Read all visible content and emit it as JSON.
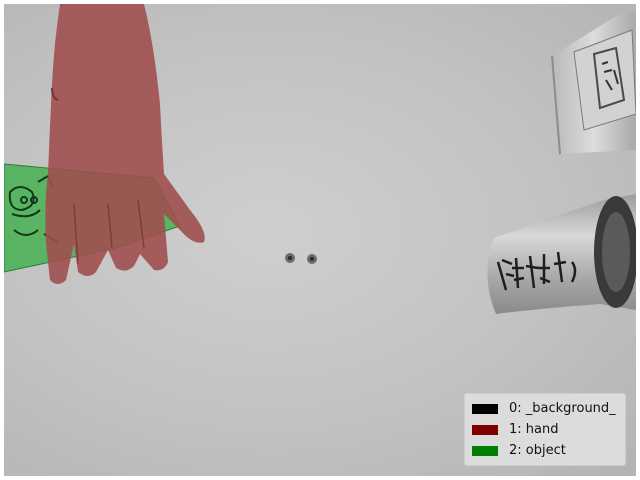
{
  "legend": {
    "items": [
      {
        "label": "0: _background_",
        "color": "#000000"
      },
      {
        "label": "1: hand",
        "color": "#800000"
      },
      {
        "label": "2: object",
        "color": "#008000"
      }
    ]
  },
  "scene": {
    "background_color": "#c4c4c4",
    "hand_overlay_color": "#9a4a4a",
    "object_overlay_color": "#3fb04a",
    "objects": [
      "hand",
      "held-carton",
      "milk-carton",
      "glass-bottle",
      "screws"
    ]
  }
}
